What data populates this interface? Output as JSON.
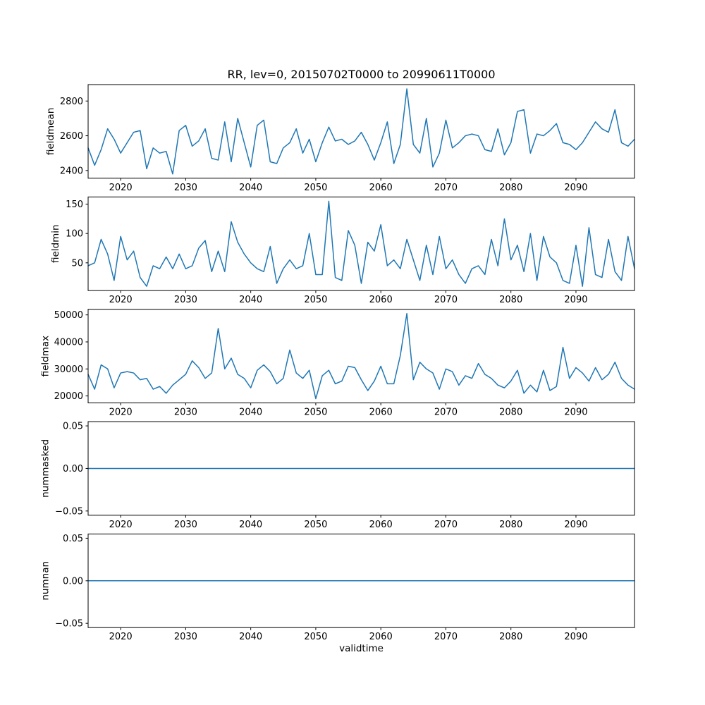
{
  "title": "RR, lev=0, 20150702T0000 to 20990611T0000",
  "xlabel": "validtime",
  "chart_data": {
    "type": "line",
    "title": "RR, lev=0, 20150702T0000 to 20990611T0000",
    "xlabel": "validtime",
    "line_color": "#1f77b4",
    "grid": false,
    "legend": "none",
    "xlim": [
      2015,
      2099
    ],
    "xticks": [
      2020,
      2030,
      2040,
      2050,
      2060,
      2070,
      2080,
      2090
    ],
    "xtick_labels": [
      "2020",
      "2030",
      "2040",
      "2050",
      "2060",
      "2070",
      "2080",
      "2090"
    ],
    "x": [
      2015,
      2016,
      2017,
      2018,
      2019,
      2020,
      2021,
      2022,
      2023,
      2024,
      2025,
      2026,
      2027,
      2028,
      2029,
      2030,
      2031,
      2032,
      2033,
      2034,
      2035,
      2036,
      2037,
      2038,
      2039,
      2040,
      2041,
      2042,
      2043,
      2044,
      2045,
      2046,
      2047,
      2048,
      2049,
      2050,
      2051,
      2052,
      2053,
      2054,
      2055,
      2056,
      2057,
      2058,
      2059,
      2060,
      2061,
      2062,
      2063,
      2064,
      2065,
      2066,
      2067,
      2068,
      2069,
      2070,
      2071,
      2072,
      2073,
      2074,
      2075,
      2076,
      2077,
      2078,
      2079,
      2080,
      2081,
      2082,
      2083,
      2084,
      2085,
      2086,
      2087,
      2088,
      2089,
      2090,
      2091,
      2092,
      2093,
      2094,
      2095,
      2096,
      2097,
      2098,
      2099
    ],
    "subplots": [
      {
        "ylabel": "fieldmean",
        "ylim": [
          2355.5,
          2894.5
        ],
        "yticks": [
          2400,
          2600,
          2800
        ],
        "ytick_labels": [
          "2400",
          "2600",
          "2800"
        ],
        "values": [
          2530,
          2430,
          2520,
          2640,
          2580,
          2500,
          2560,
          2620,
          2630,
          2410,
          2530,
          2500,
          2510,
          2380,
          2630,
          2660,
          2540,
          2570,
          2640,
          2470,
          2460,
          2680,
          2450,
          2700,
          2560,
          2420,
          2660,
          2690,
          2450,
          2440,
          2530,
          2560,
          2640,
          2500,
          2580,
          2450,
          2560,
          2650,
          2570,
          2580,
          2550,
          2570,
          2620,
          2550,
          2460,
          2560,
          2680,
          2440,
          2550,
          2870,
          2550,
          2500,
          2700,
          2420,
          2500,
          2690,
          2530,
          2560,
          2600,
          2610,
          2600,
          2520,
          2510,
          2640,
          2490,
          2560,
          2740,
          2750,
          2500,
          2610,
          2600,
          2630,
          2670,
          2560,
          2550,
          2520,
          2560,
          2620,
          2680,
          2640,
          2620,
          2750,
          2560,
          2540,
          2580
        ]
      },
      {
        "ylabel": "fieldmin",
        "ylim": [
          2.75,
          162.25
        ],
        "yticks": [
          50,
          100,
          150
        ],
        "ytick_labels": [
          "50",
          "100",
          "150"
        ],
        "values": [
          45,
          50,
          90,
          65,
          20,
          95,
          55,
          70,
          25,
          10,
          45,
          40,
          60,
          40,
          65,
          40,
          45,
          75,
          88,
          35,
          70,
          35,
          120,
          85,
          65,
          50,
          40,
          35,
          78,
          15,
          40,
          55,
          40,
          45,
          100,
          30,
          30,
          155,
          25,
          20,
          105,
          80,
          15,
          85,
          70,
          115,
          45,
          55,
          40,
          90,
          55,
          20,
          80,
          30,
          95,
          40,
          55,
          30,
          15,
          40,
          45,
          30,
          90,
          45,
          125,
          55,
          80,
          35,
          100,
          20,
          95,
          60,
          50,
          20,
          15,
          80,
          10,
          110,
          30,
          25,
          90,
          35,
          20,
          95,
          40
        ]
      },
      {
        "ylabel": "fieldmax",
        "ylim": [
          17425,
          52075
        ],
        "yticks": [
          20000,
          30000,
          40000,
          50000
        ],
        "ytick_labels": [
          "20000",
          "30000",
          "40000",
          "50000"
        ],
        "values": [
          28000,
          22500,
          31500,
          30000,
          23000,
          28500,
          29000,
          28500,
          26000,
          26500,
          22500,
          23500,
          21000,
          24000,
          26000,
          28000,
          33000,
          30500,
          26500,
          28500,
          45000,
          30000,
          34000,
          28000,
          26500,
          23000,
          29500,
          31500,
          29000,
          24500,
          26500,
          37000,
          28500,
          26500,
          29500,
          19000,
          27500,
          29500,
          24500,
          25500,
          31000,
          30500,
          26000,
          22000,
          25500,
          31000,
          24500,
          24500,
          35000,
          50500,
          26000,
          32500,
          30000,
          28500,
          22500,
          30000,
          29000,
          24000,
          27500,
          26500,
          32000,
          28000,
          26500,
          24000,
          23000,
          25500,
          29500,
          21000,
          24000,
          21500,
          29500,
          22000,
          23500,
          38000,
          26500,
          30500,
          28500,
          25500,
          30500,
          26000,
          28000,
          32500,
          26500,
          24000,
          22500
        ]
      },
      {
        "ylabel": "nummasked",
        "ylim": [
          -0.055,
          0.055
        ],
        "yticks": [
          -0.05,
          0,
          0.05
        ],
        "ytick_labels": [
          "−0.05",
          "0.00",
          "0.05"
        ],
        "constant_value": 0
      },
      {
        "ylabel": "numnan",
        "ylim": [
          -0.055,
          0.055
        ],
        "yticks": [
          -0.05,
          0,
          0.05
        ],
        "ytick_labels": [
          "−0.05",
          "0.00",
          "0.05"
        ],
        "constant_value": 0
      }
    ]
  }
}
